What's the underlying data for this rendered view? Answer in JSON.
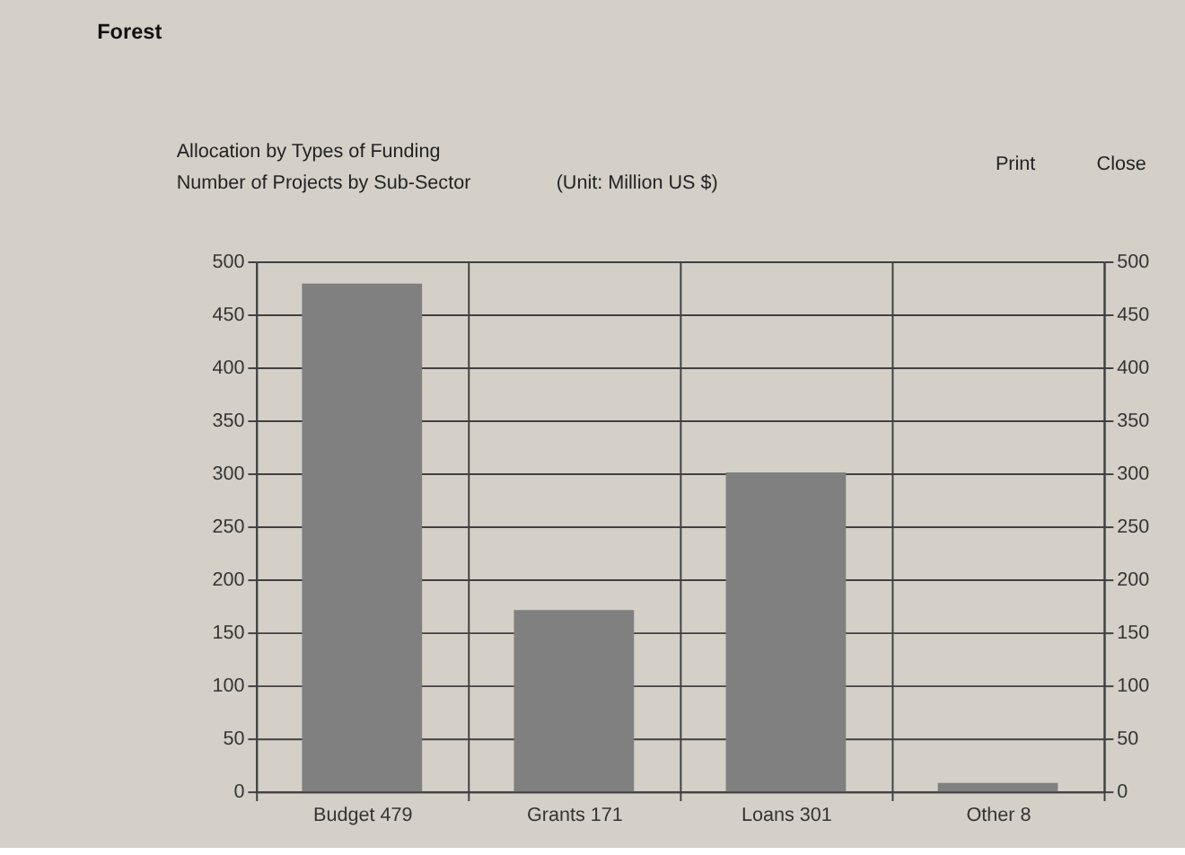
{
  "chart_data": {
    "type": "bar",
    "title": "Forest",
    "subtitle": "(Unit: Million US $)",
    "annotations": [
      "Allocation by Types of Funding",
      "Number of Projects by Sub-Sector",
      "Print",
      "Close"
    ],
    "categories": [
      "Budget 479",
      "Grants 171",
      "Loans 301",
      "Other 8"
    ],
    "values": [
      479,
      171,
      301,
      8
    ],
    "color": "#808080",
    "ylim": [
      0,
      500
    ],
    "yticks": [
      0,
      50,
      100,
      150,
      200,
      250,
      300,
      350,
      400,
      450,
      500
    ],
    "y2lim": [
      0,
      500
    ],
    "y2ticks": [
      0,
      50,
      100,
      150,
      200,
      250,
      300,
      350,
      400,
      450,
      500
    ],
    "grid": true
  }
}
